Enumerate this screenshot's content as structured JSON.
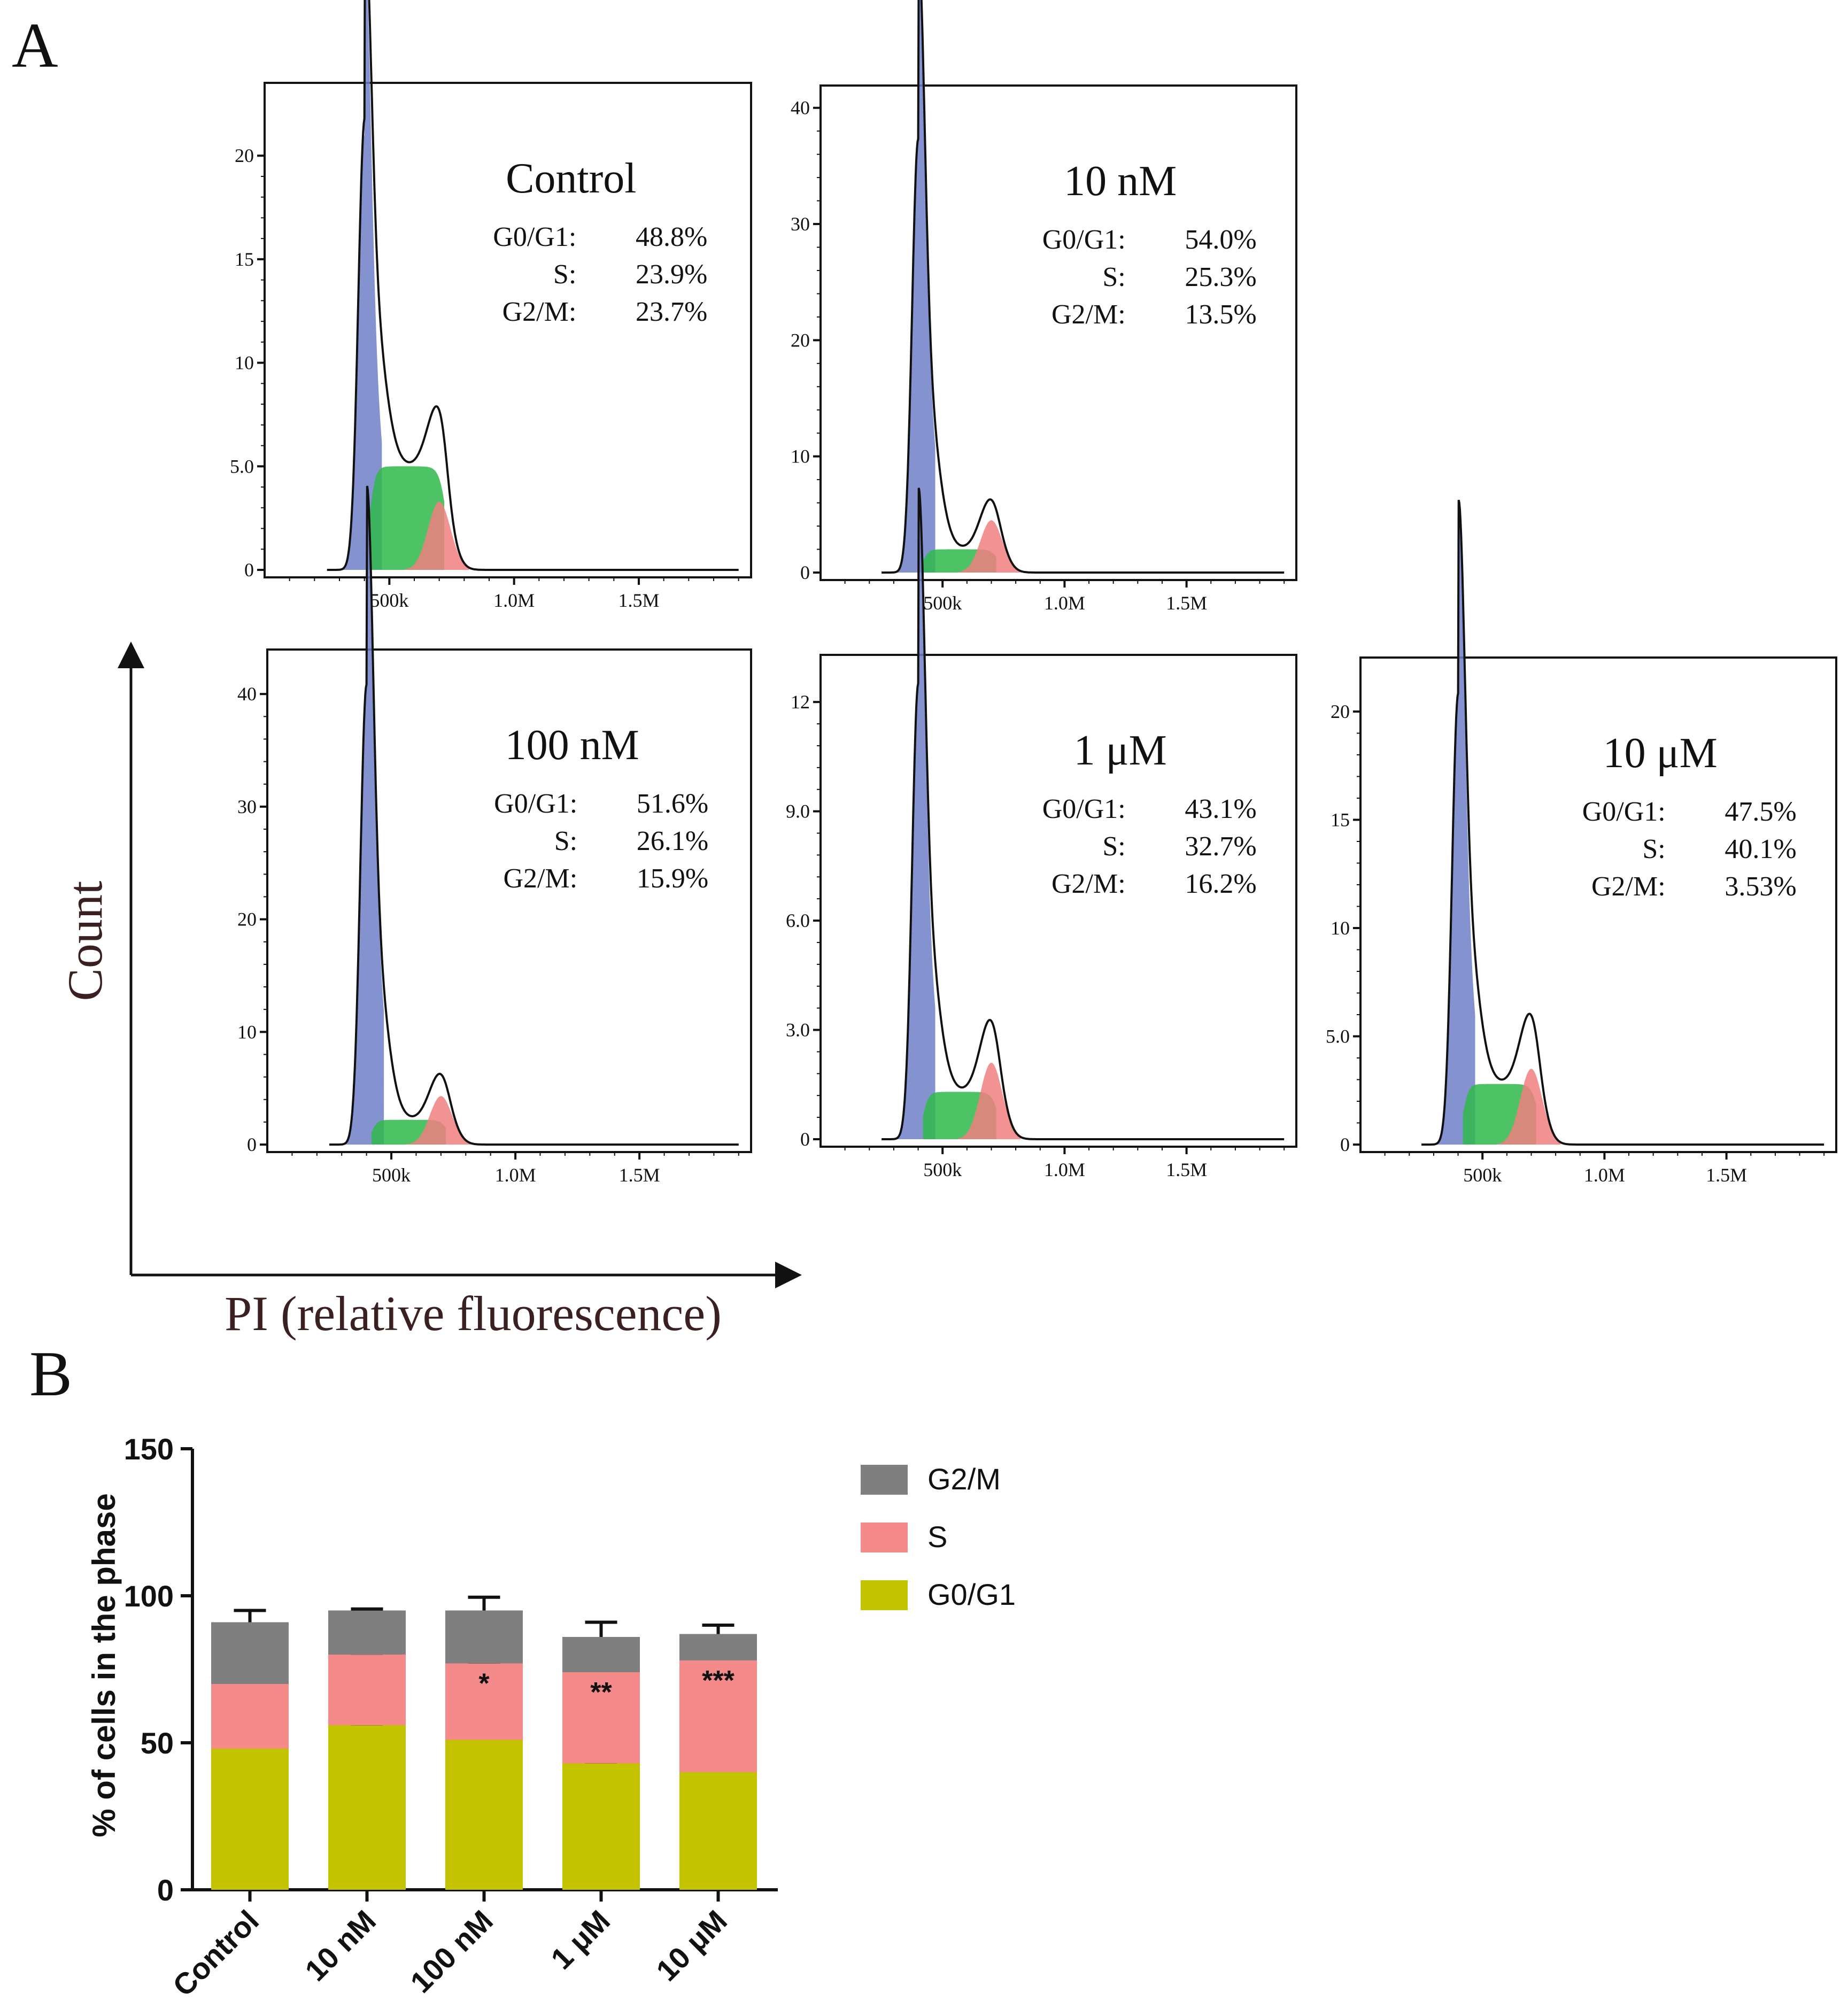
{
  "panel_labels": {
    "a": "A",
    "b": "B"
  },
  "colors": {
    "g0g1_fill": "#6f7fc8",
    "s_fill": "#2fb84a",
    "g2m_fill": "#f07f7f",
    "total_line": "#111111",
    "bar_g0g1": "#c3c300",
    "bar_s": "#f58a8a",
    "bar_g2m": "#7f7f7f",
    "arrow": "#111111",
    "axis_title": "#3a2020"
  },
  "chart_data": [
    {
      "type": "histogram",
      "panel": "A",
      "common_xlabel": "PI (relative fluorescence)",
      "common_ylabel": "Count",
      "x_tick_labels": [
        "500k",
        "1.0M",
        "1.5M"
      ],
      "x_tick_values": [
        500000,
        1000000,
        1500000
      ],
      "xlim": [
        0,
        1950000
      ],
      "histograms": [
        {
          "title": "Control",
          "ylim": [
            0,
            23
          ],
          "y_ticks": [
            0,
            5,
            10,
            15,
            20
          ],
          "y_tick_labels": [
            "0",
            "5.0",
            "10",
            "15",
            "20"
          ],
          "g1_peak": 21,
          "g2_peak": 3.3,
          "s_level": 5,
          "stats": [
            {
              "label": "G0/G1:",
              "value": "48.8%"
            },
            {
              "label": "S:",
              "value": "23.9%"
            },
            {
              "label": "G2/M:",
              "value": "23.7%"
            }
          ]
        },
        {
          "title": "10 nM",
          "ylim": [
            0,
            41
          ],
          "y_ticks": [
            0,
            10,
            20,
            30,
            40
          ],
          "y_tick_labels": [
            "0",
            "10",
            "20",
            "30",
            "40"
          ],
          "g1_peak": 37,
          "g2_peak": 4.5,
          "s_level": 2,
          "stats": [
            {
              "label": "G0/G1:",
              "value": "54.0%"
            },
            {
              "label": "S:",
              "value": "25.3%"
            },
            {
              "label": "G2/M:",
              "value": "13.5%"
            }
          ]
        },
        {
          "title": "100 nM",
          "ylim": [
            0,
            43
          ],
          "y_ticks": [
            0,
            10,
            20,
            30,
            40
          ],
          "y_tick_labels": [
            "0",
            "10",
            "20",
            "30",
            "40"
          ],
          "g1_peak": 40.5,
          "g2_peak": 4.3,
          "s_level": 2.2,
          "stats": [
            {
              "label": "G0/G1:",
              "value": "51.6%"
            },
            {
              "label": "S:",
              "value": "26.1%"
            },
            {
              "label": "G2/M:",
              "value": "15.9%"
            }
          ]
        },
        {
          "title": "1 μM",
          "ylim": [
            0,
            13
          ],
          "y_ticks": [
            0,
            3,
            6,
            9,
            12
          ],
          "y_tick_labels": [
            "0",
            "3.0",
            "6.0",
            "9.0",
            "12"
          ],
          "g1_peak": 12.3,
          "g2_peak": 2.1,
          "s_level": 1.3,
          "stats": [
            {
              "label": "G0/G1:",
              "value": "43.1%"
            },
            {
              "label": "S:",
              "value": "32.7%"
            },
            {
              "label": "G2/M:",
              "value": "16.2%"
            }
          ]
        },
        {
          "title": "10 μM",
          "ylim": [
            0,
            22
          ],
          "y_ticks": [
            0,
            5,
            10,
            15,
            20
          ],
          "y_tick_labels": [
            "0",
            "5.0",
            "10",
            "15",
            "20"
          ],
          "g1_peak": 20.4,
          "g2_peak": 3.5,
          "s_level": 2.8,
          "stats": [
            {
              "label": "G0/G1:",
              "value": "47.5%"
            },
            {
              "label": "S:",
              "value": "40.1%"
            },
            {
              "label": "G2/M:",
              "value": "3.53%"
            }
          ]
        }
      ]
    },
    {
      "type": "bar",
      "stacked": true,
      "panel": "B",
      "categories": [
        "Control",
        "10 nM",
        "100 nM",
        "1 μM",
        "10 μM"
      ],
      "ylabel": "% of cells in the phase",
      "xlabel": "",
      "ylim": [
        0,
        150
      ],
      "y_ticks": [
        0,
        50,
        100,
        150
      ],
      "y_tick_labels": [
        "0",
        "50",
        "100",
        "150"
      ],
      "legend_position": "right",
      "series": [
        {
          "name": "G0/G1",
          "values": [
            48,
            56,
            51,
            43,
            40
          ],
          "errors": [
            2,
            0.5,
            3,
            0.5,
            9
          ]
        },
        {
          "name": "S",
          "values": [
            22,
            24,
            26,
            31,
            38
          ],
          "errors": [
            1,
            0.5,
            0.5,
            1.5,
            2
          ]
        },
        {
          "name": "G2/M",
          "values": [
            21,
            15,
            18,
            12,
            9
          ],
          "errors": [
            4,
            0.5,
            4.5,
            5,
            3
          ]
        }
      ],
      "legend_order": [
        "G2/M",
        "S",
        "G0/G1"
      ],
      "annotations": [
        {
          "category": "100 nM",
          "text": "*"
        },
        {
          "category": "1 μM",
          "text": "**"
        },
        {
          "category": "10 μM",
          "text": "***"
        }
      ]
    }
  ]
}
